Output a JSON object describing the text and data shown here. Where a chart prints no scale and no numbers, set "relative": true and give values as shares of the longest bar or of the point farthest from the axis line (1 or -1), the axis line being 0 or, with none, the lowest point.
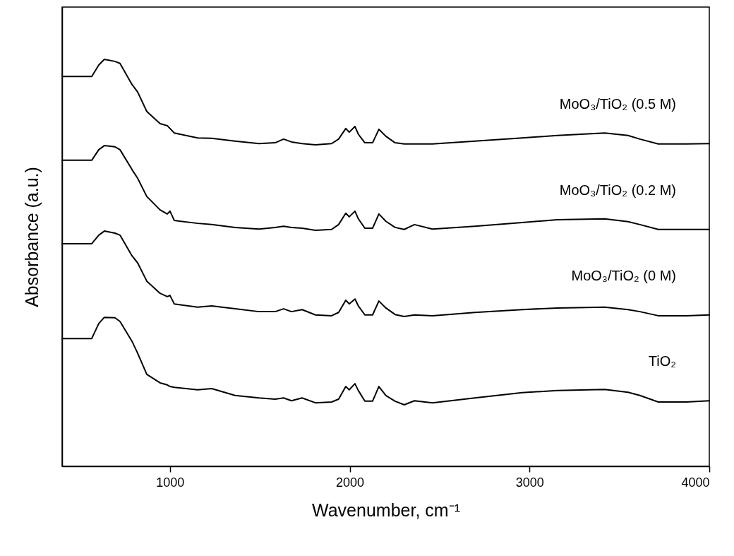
{
  "chart_data": {
    "type": "line",
    "relative": true,
    "xlabel": "Wavenumber, cm⁻¹",
    "ylabel": "Absorbance (a.u.)",
    "xlim": [
      400,
      4000
    ],
    "xticks": [
      1000,
      2000,
      3000,
      4000
    ],
    "x": [
      400,
      565,
      604,
      635,
      694,
      722,
      789,
      820,
      871,
      945,
      985,
      1000,
      1024,
      1154,
      1232,
      1362,
      1495,
      1585,
      1632,
      1676,
      1735,
      1809,
      1899,
      1938,
      1978,
      1997,
      2029,
      2048,
      2084,
      2127,
      2162,
      2201,
      2252,
      2303,
      2360,
      2460,
      2696,
      2959,
      3155,
      3418,
      3548,
      3614,
      3716,
      3873,
      4000
    ],
    "series": [
      {
        "name": "MoO₃/TiO₂ (0.5 M)",
        "color": "#000000",
        "values": [
          0.958,
          0.958,
          0.986,
          1,
          0.995,
          0.99,
          0.938,
          0.92,
          0.872,
          0.842,
          0.837,
          0.83,
          0.819,
          0.807,
          0.806,
          0.799,
          0.793,
          0.795,
          0.804,
          0.797,
          0.793,
          0.79,
          0.793,
          0.804,
          0.83,
          0.821,
          0.835,
          0.816,
          0.795,
          0.795,
          0.828,
          0.811,
          0.795,
          0.792,
          0.792,
          0.792,
          0.799,
          0.807,
          0.813,
          0.819,
          0.813,
          0.804,
          0.792,
          0.792,
          0.793
        ]
      },
      {
        "name": "MoO₃/TiO₂ (0.2 M)",
        "color": "#000000",
        "values": [
          0.752,
          0.752,
          0.778,
          0.788,
          0.785,
          0.778,
          0.729,
          0.708,
          0.663,
          0.63,
          0.62,
          0.627,
          0.604,
          0.597,
          0.594,
          0.587,
          0.583,
          0.587,
          0.59,
          0.587,
          0.585,
          0.58,
          0.582,
          0.594,
          0.622,
          0.613,
          0.627,
          0.608,
          0.585,
          0.585,
          0.62,
          0.602,
          0.587,
          0.582,
          0.594,
          0.583,
          0.59,
          0.599,
          0.606,
          0.608,
          0.601,
          0.594,
          0.582,
          0.582,
          0.582
        ]
      },
      {
        "name": "MoO₃/TiO₂ (0 M)",
        "color": "#000000",
        "values": [
          0.547,
          0.547,
          0.568,
          0.578,
          0.573,
          0.568,
          0.517,
          0.5,
          0.455,
          0.425,
          0.417,
          0.42,
          0.399,
          0.391,
          0.394,
          0.387,
          0.38,
          0.38,
          0.387,
          0.38,
          0.385,
          0.372,
          0.37,
          0.378,
          0.408,
          0.399,
          0.411,
          0.394,
          0.372,
          0.372,
          0.406,
          0.389,
          0.373,
          0.368,
          0.372,
          0.37,
          0.378,
          0.385,
          0.389,
          0.391,
          0.385,
          0.38,
          0.37,
          0.37,
          0.372
        ]
      },
      {
        "name": "TiO₂",
        "color": "#000000",
        "values": [
          0.314,
          0.314,
          0.351,
          0.366,
          0.365,
          0.356,
          0.307,
          0.278,
          0.226,
          0.205,
          0.2,
          0.196,
          0.194,
          0.188,
          0.191,
          0.174,
          0.168,
          0.165,
          0.168,
          0.161,
          0.168,
          0.156,
          0.158,
          0.165,
          0.196,
          0.188,
          0.203,
          0.186,
          0.16,
          0.16,
          0.196,
          0.174,
          0.16,
          0.151,
          0.161,
          0.156,
          0.168,
          0.181,
          0.186,
          0.189,
          0.182,
          0.174,
          0.158,
          0.158,
          0.161
        ]
      }
    ]
  }
}
